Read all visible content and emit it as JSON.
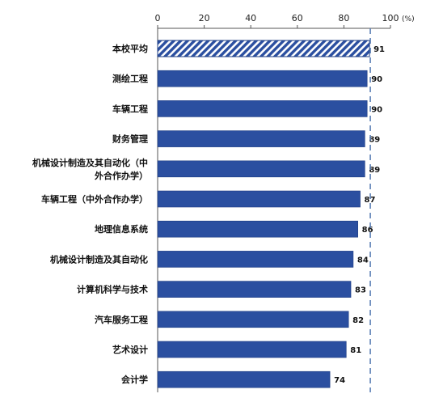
{
  "chart_data": {
    "type": "bar",
    "orientation": "horizontal",
    "title": "",
    "xlabel": "",
    "ylabel": "",
    "unit": "(%)",
    "xlim": [
      0,
      100
    ],
    "x_ticks": [
      0,
      20,
      40,
      60,
      80,
      100
    ],
    "x_axis_position": "top",
    "grid": false,
    "legend": "none",
    "categories": [
      "本校平均",
      "测绘工程",
      "车辆工程",
      "财务管理",
      "机械设计制造及其自动化（中外合作办学）",
      "车辆工程（中外合作办学）",
      "地理信息系统",
      "机械设计制造及其自动化",
      "计算机科学与技术",
      "汽车服务工程",
      "艺术设计",
      "会计学"
    ],
    "category_label_lines": [
      [
        "本校平均"
      ],
      [
        "测绘工程"
      ],
      [
        "车辆工程"
      ],
      [
        "财务管理"
      ],
      [
        "机械设计制造及其自动化（中",
        "外合作办学）"
      ],
      [
        "车辆工程（中外合作办学）"
      ],
      [
        "地理信息系统"
      ],
      [
        "机械设计制造及其自动化"
      ],
      [
        "计算机科学与技术"
      ],
      [
        "汽车服务工程"
      ],
      [
        "艺术设计"
      ],
      [
        "会计学"
      ]
    ],
    "values": [
      91,
      90,
      90,
      89,
      89,
      87,
      86,
      84,
      83,
      82,
      81,
      74
    ],
    "highlight_index": 0,
    "highlight_pattern": "diagonal-hatch",
    "reference_line": {
      "value": 91,
      "style": "dashed"
    },
    "colors": {
      "bar": "#2b4fa0",
      "bar_edge": "#1e3c82",
      "hatch_bg": "#ffffff",
      "reference_line": "#5b7fb5",
      "axis": "#555555"
    }
  }
}
